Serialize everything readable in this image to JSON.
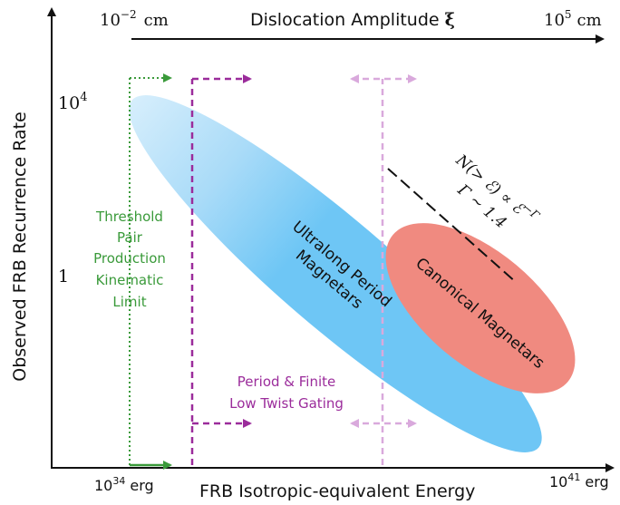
{
  "top_axis": {
    "title": "Dislocation Amplitude",
    "symbol": "ξ",
    "left_base": "10",
    "left_exp": "−2",
    "left_unit": "cm",
    "right_base": "10",
    "right_exp": "5",
    "right_unit": "cm"
  },
  "y_axis": {
    "title": "Observed FRB Recurrence Rate",
    "tick_high_base": "10",
    "tick_high_exp": "4",
    "tick_low": "1"
  },
  "x_axis": {
    "title": "FRB Isotropic-equivalent Energy",
    "left_base": "10",
    "left_exp": "34",
    "left_unit": "erg",
    "right_base": "10",
    "right_exp": "41",
    "right_unit": "erg"
  },
  "regions": {
    "ultralong_line1": "Ultralong Period",
    "ultralong_line2": "Magnetars",
    "canonical": "Canonical Magnetars"
  },
  "limits": {
    "threshold_lines": [
      "Threshold",
      "Pair",
      "Production",
      "Kinematic",
      "Limit"
    ],
    "gating_line1": "Period & Finite",
    "gating_line2": "Low Twist Gating"
  },
  "power_law": {
    "formula": "N(> ℰ) ∝ ℰ",
    "formula_exp": "−Γ",
    "gamma": "Γ ∼ 1.4"
  },
  "colors": {
    "axis": "#111111",
    "ultralong_blue": "#6ec6f5",
    "ultralong_light": "#d6eefc",
    "canonical_red": "#f08a80",
    "green": "#3a9a3a",
    "purple": "#9b2c9b",
    "pink": "#d9a9dc"
  }
}
